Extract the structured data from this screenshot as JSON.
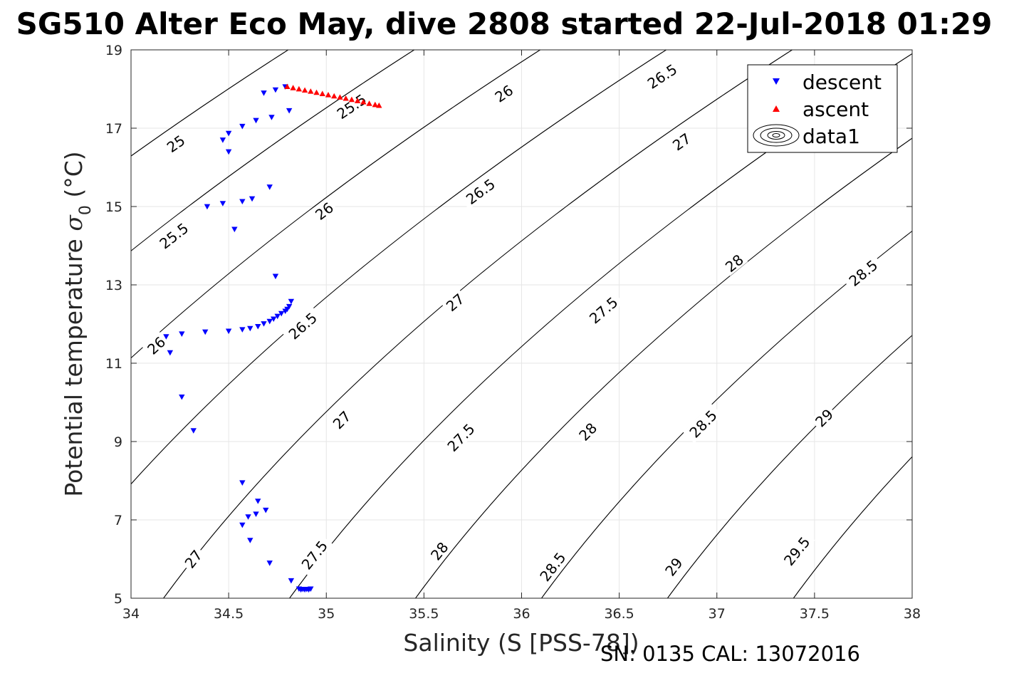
{
  "chart_data": {
    "type": "scatter",
    "title": "SG510 Alter Eco May, dive 2808 started 22-Jul-2018 01:29",
    "xlabel": "Salinity (S [PSS-78])",
    "ylabel": "Potential temperature σ0 (°C)",
    "ylabel_main": "Potential temperature ",
    "ylabel_sigma": "σ",
    "ylabel_sub": "0",
    "ylabel_unit": " (°C)",
    "footer": "SN: 0135  CAL: 13072016",
    "xlim": [
      34,
      38
    ],
    "ylim": [
      5,
      19
    ],
    "x_ticks": [
      34,
      34.5,
      35,
      35.5,
      36,
      36.5,
      37,
      37.5,
      38
    ],
    "x_tick_labels": [
      "34",
      "34.5",
      "35",
      "35.5",
      "36",
      "36.5",
      "37",
      "37.5",
      "38"
    ],
    "y_ticks": [
      5,
      7,
      9,
      11,
      13,
      15,
      17,
      19
    ],
    "y_tick_labels": [
      "5",
      "7",
      "9",
      "11",
      "13",
      "15",
      "17",
      "19"
    ],
    "grid": true,
    "legend_position": "top-right",
    "legend": [
      "descent",
      "ascent",
      "data1"
    ],
    "colors": {
      "descent": "#0000ff",
      "ascent": "#ff0000",
      "contour": "#000000",
      "grid": "#e6e6e6"
    },
    "contour_levels": [
      25,
      25.5,
      26,
      26.5,
      27,
      27.5,
      28,
      28.5,
      29,
      29.5
    ],
    "contour_labels": [
      {
        "text": "25",
        "s": 34.23,
        "t": 16.6
      },
      {
        "text": "25.5",
        "s": 34.22,
        "t": 14.25
      },
      {
        "text": "26",
        "s": 34.13,
        "t": 11.45
      },
      {
        "text": "25.5",
        "s": 35.13,
        "t": 17.55
      },
      {
        "text": "26",
        "s": 34.99,
        "t": 14.88
      },
      {
        "text": "26.5",
        "s": 34.88,
        "t": 11.95
      },
      {
        "text": "27",
        "s": 34.32,
        "t": 6.0
      },
      {
        "text": "26",
        "s": 35.91,
        "t": 17.88
      },
      {
        "text": "26.5",
        "s": 35.79,
        "t": 15.38
      },
      {
        "text": "27",
        "s": 35.66,
        "t": 12.55
      },
      {
        "text": "27",
        "s": 35.08,
        "t": 9.55
      },
      {
        "text": "27.5",
        "s": 34.94,
        "t": 6.1
      },
      {
        "text": "26.5",
        "s": 36.72,
        "t": 18.32
      },
      {
        "text": "27",
        "s": 36.82,
        "t": 16.65
      },
      {
        "text": "27.5",
        "s": 36.42,
        "t": 12.35
      },
      {
        "text": "27.5",
        "s": 35.69,
        "t": 9.1
      },
      {
        "text": "28",
        "s": 35.58,
        "t": 6.2
      },
      {
        "text": "28",
        "s": 36.34,
        "t": 9.25
      },
      {
        "text": "28",
        "s": 37.09,
        "t": 13.55
      },
      {
        "text": "28.5",
        "s": 36.16,
        "t": 5.8
      },
      {
        "text": "28.5",
        "s": 36.93,
        "t": 9.45
      },
      {
        "text": "28.5",
        "s": 37.75,
        "t": 13.3
      },
      {
        "text": "29",
        "s": 36.78,
        "t": 5.8
      },
      {
        "text": "29",
        "s": 37.55,
        "t": 9.6
      },
      {
        "text": "29.5",
        "s": 37.41,
        "t": 6.2
      }
    ],
    "series": [
      {
        "name": "descent",
        "marker": "triangle-down",
        "points": [
          [
            34.79,
            18.06
          ],
          [
            34.74,
            17.98
          ],
          [
            34.68,
            17.9
          ],
          [
            34.81,
            17.45
          ],
          [
            34.72,
            17.28
          ],
          [
            34.64,
            17.2
          ],
          [
            34.57,
            17.05
          ],
          [
            34.5,
            16.87
          ],
          [
            34.47,
            16.7
          ],
          [
            34.5,
            16.4
          ],
          [
            34.71,
            15.5
          ],
          [
            34.62,
            15.2
          ],
          [
            34.57,
            15.13
          ],
          [
            34.47,
            15.08
          ],
          [
            34.39,
            15.0
          ],
          [
            34.53,
            14.42
          ],
          [
            34.74,
            13.22
          ],
          [
            34.82,
            12.58
          ],
          [
            34.81,
            12.45
          ],
          [
            34.8,
            12.38
          ],
          [
            34.79,
            12.33
          ],
          [
            34.77,
            12.27
          ],
          [
            34.75,
            12.2
          ],
          [
            34.73,
            12.13
          ],
          [
            34.71,
            12.07
          ],
          [
            34.68,
            12.01
          ],
          [
            34.65,
            11.94
          ],
          [
            34.61,
            11.89
          ],
          [
            34.57,
            11.86
          ],
          [
            34.5,
            11.82
          ],
          [
            34.38,
            11.8
          ],
          [
            34.26,
            11.75
          ],
          [
            34.18,
            11.68
          ],
          [
            34.2,
            11.27
          ],
          [
            34.26,
            10.14
          ],
          [
            34.32,
            9.28
          ],
          [
            34.57,
            7.95
          ],
          [
            34.65,
            7.48
          ],
          [
            34.69,
            7.25
          ],
          [
            34.64,
            7.15
          ],
          [
            34.6,
            7.08
          ],
          [
            34.57,
            6.87
          ],
          [
            34.61,
            6.48
          ],
          [
            34.71,
            5.9
          ],
          [
            34.82,
            5.45
          ],
          [
            34.86,
            5.24
          ],
          [
            34.87,
            5.22
          ],
          [
            34.88,
            5.23
          ],
          [
            34.89,
            5.22
          ],
          [
            34.9,
            5.23
          ],
          [
            34.91,
            5.22
          ],
          [
            34.92,
            5.24
          ]
        ]
      },
      {
        "name": "ascent",
        "marker": "triangle-up",
        "points": [
          [
            34.8,
            18.06
          ],
          [
            34.83,
            18.03
          ],
          [
            34.86,
            18.0
          ],
          [
            34.89,
            17.97
          ],
          [
            34.92,
            17.94
          ],
          [
            34.95,
            17.91
          ],
          [
            34.98,
            17.88
          ],
          [
            35.01,
            17.85
          ],
          [
            35.04,
            17.82
          ],
          [
            35.07,
            17.79
          ],
          [
            35.1,
            17.76
          ],
          [
            35.13,
            17.73
          ],
          [
            35.16,
            17.7
          ],
          [
            35.19,
            17.67
          ],
          [
            35.22,
            17.63
          ],
          [
            35.25,
            17.6
          ],
          [
            35.27,
            17.58
          ]
        ]
      }
    ]
  }
}
